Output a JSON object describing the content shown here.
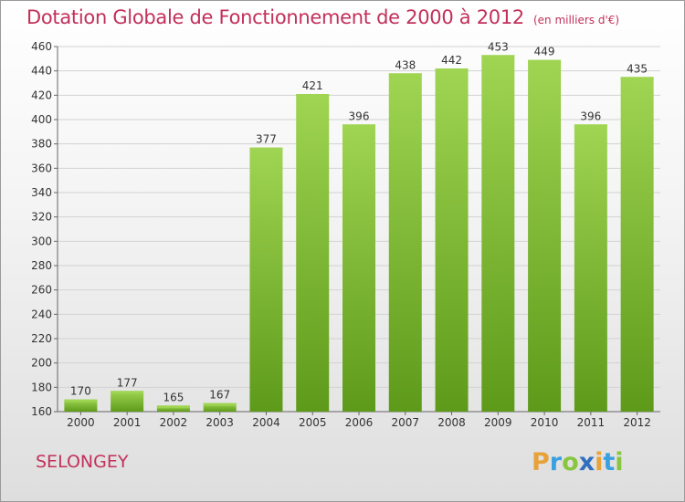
{
  "chart_data": {
    "type": "bar",
    "title": "Dotation Globale de Fonctionnement de 2000 à 2012",
    "subtitle": "(en milliers d'€)",
    "categories": [
      "2000",
      "2001",
      "2002",
      "2003",
      "2004",
      "2005",
      "2006",
      "2007",
      "2008",
      "2009",
      "2010",
      "2011",
      "2012"
    ],
    "values": [
      170,
      177,
      165,
      167,
      377,
      421,
      396,
      438,
      442,
      453,
      449,
      396,
      435
    ],
    "ylim": [
      160,
      460
    ],
    "yticks": [
      160,
      180,
      200,
      220,
      240,
      260,
      280,
      300,
      320,
      340,
      360,
      380,
      400,
      420,
      440,
      460
    ],
    "grid": true,
    "bar_color": "#7dc034",
    "bar_color_light": "#9fd552",
    "bar_color_dark": "#5e9a1a"
  },
  "footer": {
    "commune": "SELONGEY",
    "logo_letters": [
      {
        "ch": "P",
        "color": "#e8a23a"
      },
      {
        "ch": "r",
        "color": "#3aa0e0"
      },
      {
        "ch": "o",
        "color": "#88c540"
      },
      {
        "ch": "x",
        "color": "#2f6fbf"
      },
      {
        "ch": "i",
        "color": "#e8a23a"
      },
      {
        "ch": "t",
        "color": "#3aa0e0"
      },
      {
        "ch": "i",
        "color": "#88c540"
      }
    ]
  }
}
